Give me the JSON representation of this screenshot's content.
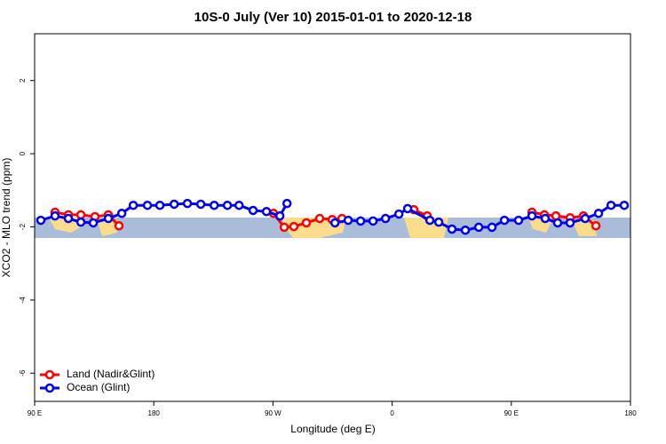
{
  "chart_data": {
    "type": "line",
    "title": "10S-0 July (Ver 10)   2015-01-01 to 2020-12-18",
    "x_label": "Longitude (deg E)",
    "y_label": "XCO2 - MLO trend (ppm)",
    "xlim": [
      90,
      540
    ],
    "xticks": [
      {
        "value": 90,
        "label": "90 E"
      },
      180,
      {
        "value": 270,
        "label": "90 W"
      },
      {
        "value": 360,
        "label": "0"
      },
      {
        "value": 450,
        "label": "90 E"
      },
      180
    ],
    "ylim": [
      -6.77,
      3.28
    ],
    "yticks": [
      -6,
      -4,
      -2,
      0,
      2
    ],
    "legend": "bottom-left",
    "series": [
      {
        "name": "Land (Nadir&Glint)",
        "color": "#ff0000",
        "x": [
          105.4,
          115.5,
          124.9,
          135.6,
          145.7,
          153.7,
          null,
          270.4,
          278.5,
          285.8,
          295.2,
          305.3,
          314.7,
          322.1,
          null,
          376.4,
          386.5,
          null,
          465.6,
          475.0,
          483.7,
          494.4,
          504.5,
          513.9
        ],
        "values": [
          -1.6,
          -1.67,
          -1.67,
          -1.72,
          -1.67,
          -1.97,
          null,
          -1.63,
          -2.01,
          -1.99,
          -1.89,
          -1.77,
          -1.8,
          -1.77,
          null,
          -1.53,
          -1.7,
          null,
          -1.6,
          -1.67,
          -1.7,
          -1.75,
          -1.7,
          -1.97
        ]
      },
      {
        "name": "Ocean (Glint)",
        "color": "#0000ee",
        "x": [
          94.7,
          105.4,
          115.5,
          124.9,
          134.3,
          145.7,
          155.8,
          164.5,
          175.2,
          184.6,
          195.4,
          205.4,
          215.5,
          225.6,
          235.6,
          244.4,
          255.0,
          265.1,
          275.2,
          280.6,
          null,
          316.8,
          326.8,
          336.2,
          345.6,
          355.0,
          365.1,
          371.7,
          388.5,
          395.2,
          405.2,
          415.3,
          425.4,
          435.4,
          444.8,
          455.5,
          465.6,
          475.6,
          485.0,
          494.4,
          505.8,
          515.9,
          525.3,
          535.3
        ],
        "values": [
          -1.82,
          -1.7,
          -1.77,
          -1.87,
          -1.89,
          -1.77,
          -1.63,
          -1.41,
          -1.41,
          -1.41,
          -1.38,
          -1.36,
          -1.38,
          -1.41,
          -1.41,
          -1.41,
          -1.55,
          -1.58,
          -1.7,
          -1.36,
          null,
          -1.89,
          -1.82,
          -1.84,
          -1.84,
          -1.77,
          -1.65,
          -1.5,
          -1.82,
          -1.87,
          -2.06,
          -2.09,
          -2.01,
          -2.01,
          -1.82,
          -1.82,
          -1.7,
          -1.77,
          -1.89,
          -1.89,
          -1.77,
          -1.63,
          -1.41,
          -1.41
        ]
      }
    ]
  }
}
